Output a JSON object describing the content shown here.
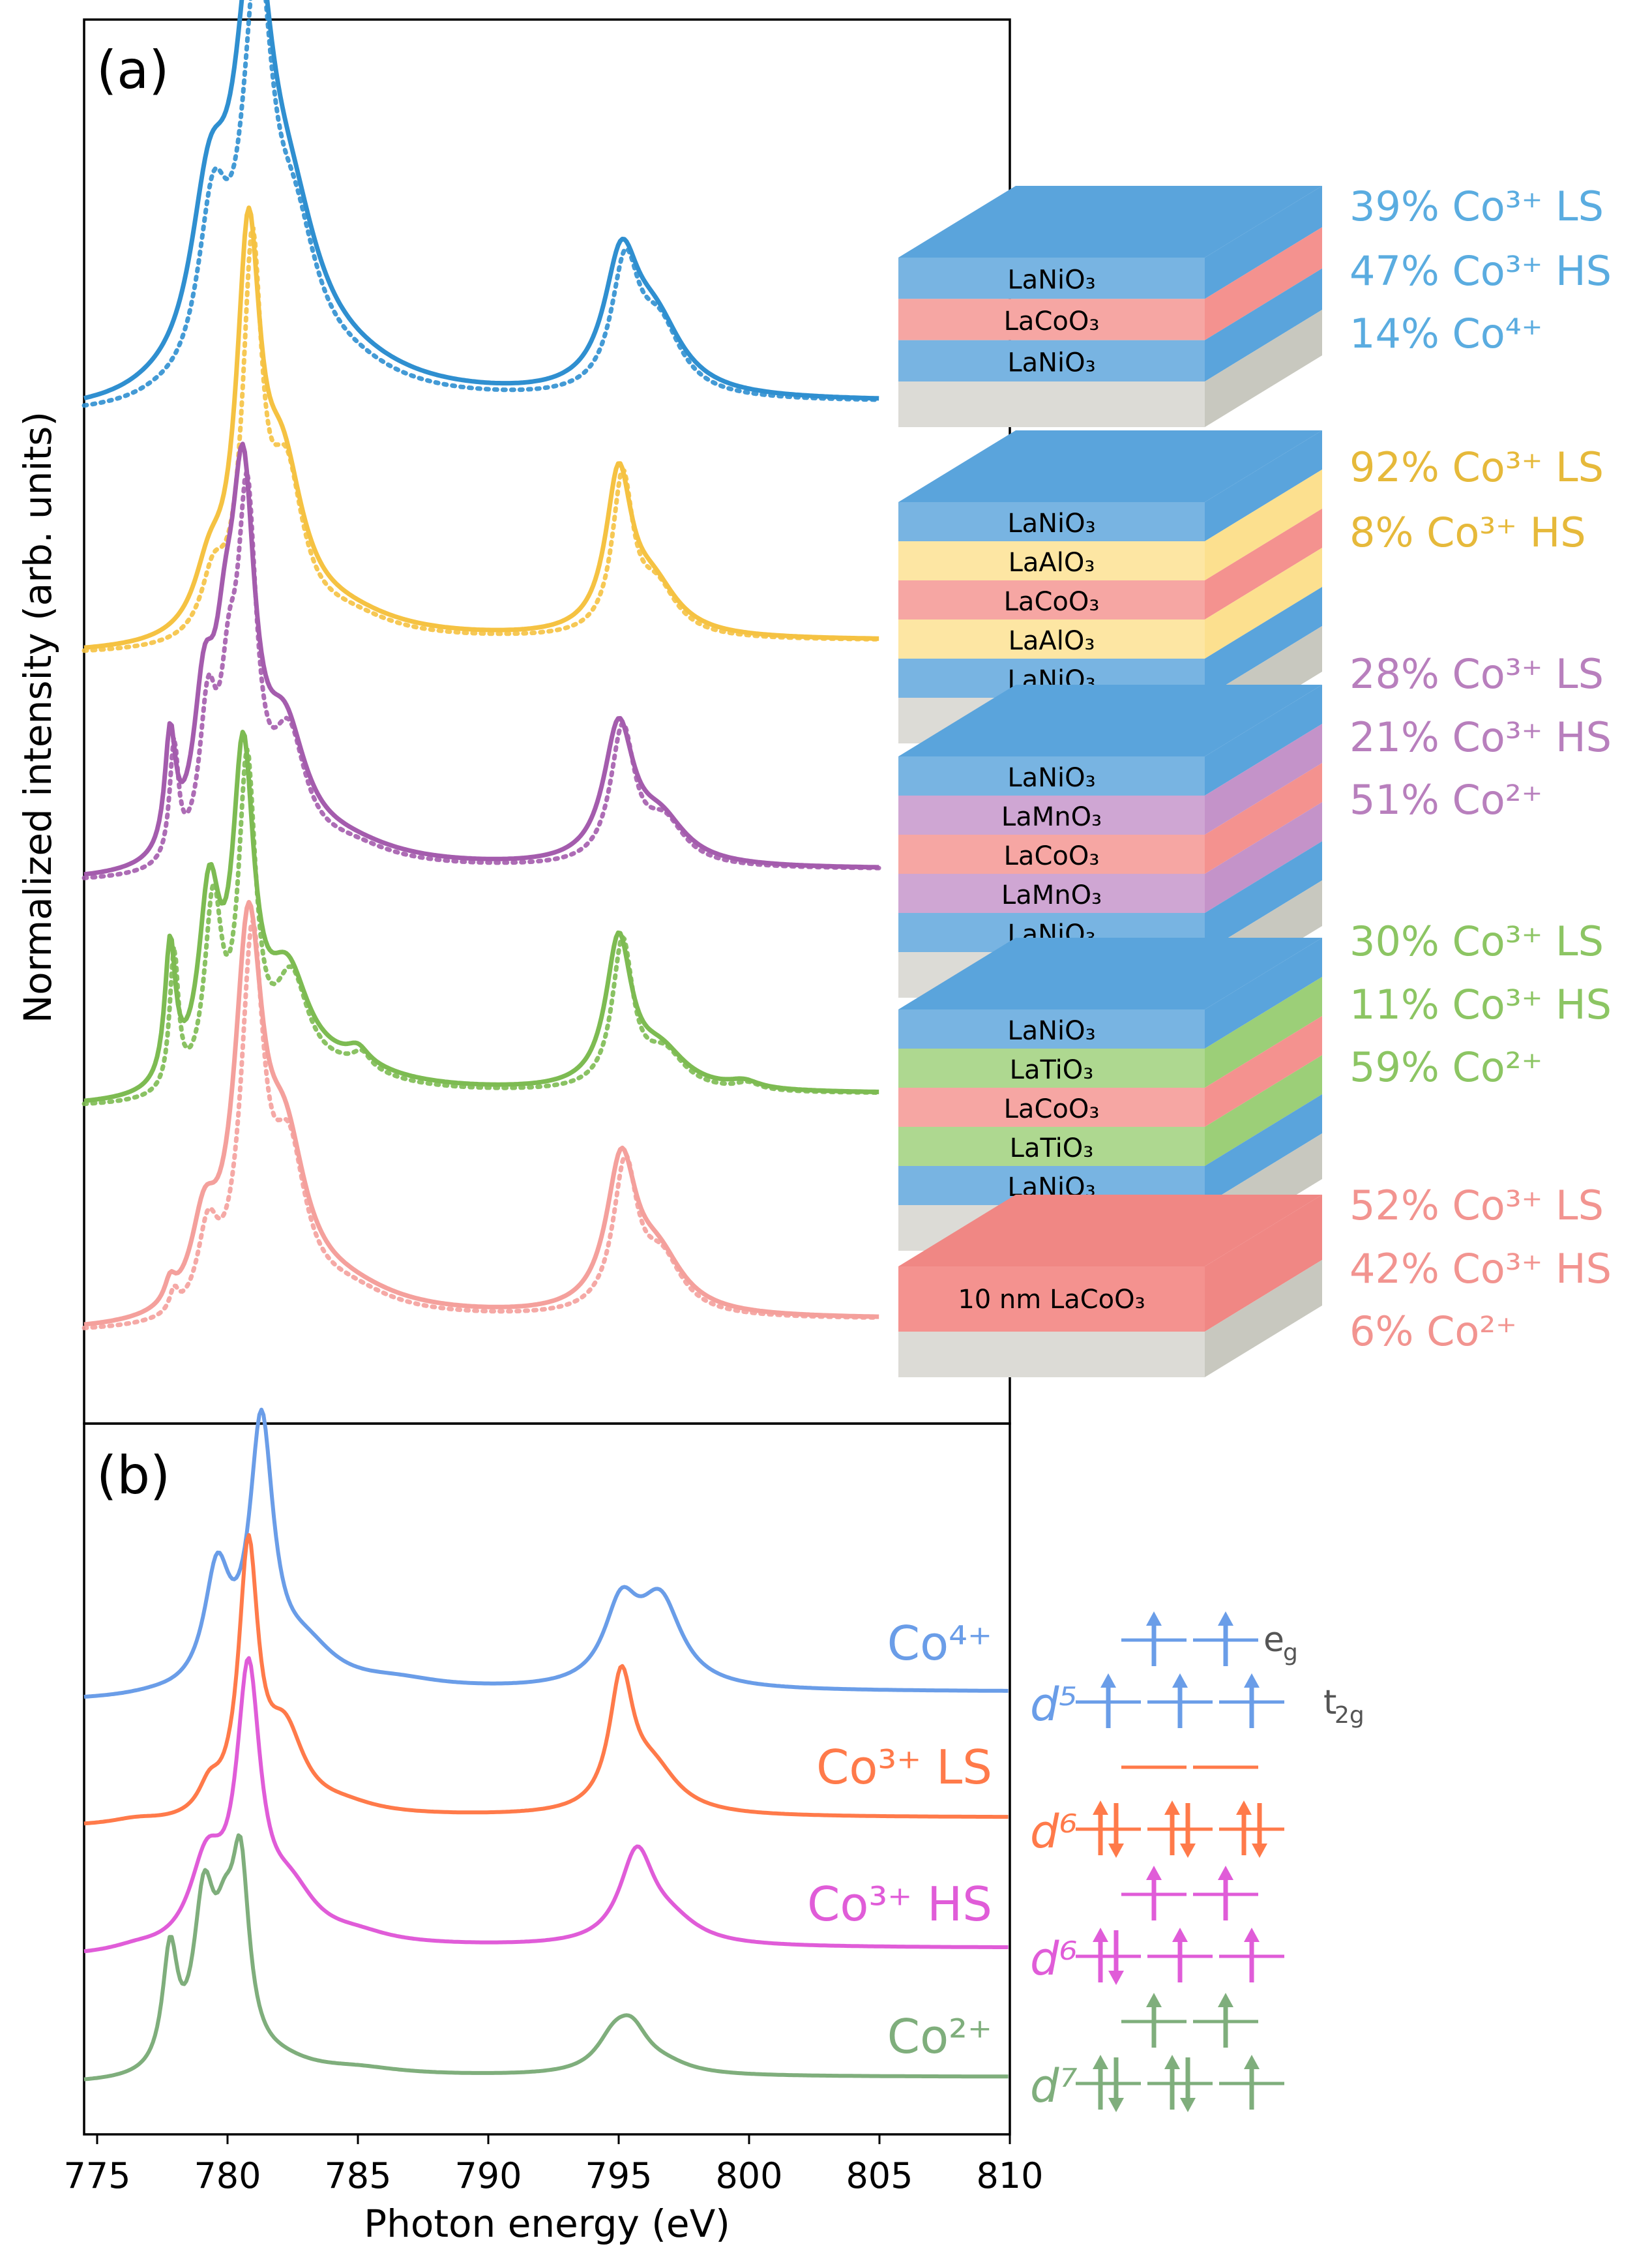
{
  "chart_data": [
    {
      "type": "line",
      "panel_label": "(a)",
      "ylabel": "Normalized intensity (arb. units)",
      "xlim": [
        774.5,
        810
      ],
      "legend_placement": "right",
      "note": "solid = measured, dotted = fit; each curve offset vertically",
      "series": [
        {
          "name": "LaNiO3/LaCoO3/LaNiO3",
          "color": "#2f8fd0",
          "baseline": 0.0,
          "peaks": [
            [
              777.2,
              0.01,
              1.5
            ],
            [
              779.3,
              0.45,
              0.9
            ],
            [
              781.0,
              1.0,
              0.85
            ],
            [
              782.4,
              0.35,
              1.4
            ],
            [
              784.5,
              0.06,
              3.0
            ],
            [
              795.1,
              0.33,
              0.8
            ],
            [
              796.4,
              0.18,
              1.3
            ]
          ],
          "layers": [
            "LaNiO₃",
            "LaCoO₃",
            "LaNiO₃"
          ],
          "layer_colors": [
            "#5aa4dc",
            "#f4928f",
            "#5aa4dc"
          ],
          "fractions": [
            "39% Co³⁺ LS",
            "47% Co³⁺ HS",
            "14% Co⁴⁺"
          ]
        },
        {
          "name": "LaNiO3/LaAlO3/LaCoO3/LaAlO3/LaNiO3",
          "color": "#f5c242",
          "baseline": 0.0,
          "peaks": [
            [
              779.3,
              0.15,
              0.7
            ],
            [
              780.8,
              1.0,
              0.55
            ],
            [
              782.1,
              0.4,
              1.0
            ],
            [
              784.5,
              0.05,
              2.5
            ],
            [
              795.0,
              0.42,
              0.6
            ],
            [
              796.3,
              0.13,
              1.2
            ]
          ],
          "layers": [
            "LaNiO₃",
            "LaAlO₃",
            "LaCoO₃",
            "LaAlO₃",
            "LaNiO₃"
          ],
          "layer_colors": [
            "#5aa4dc",
            "#fce08f",
            "#f4928f",
            "#fce08f",
            "#5aa4dc"
          ],
          "fractions": [
            "92% Co³⁺ LS",
            "8% Co³⁺ HS"
          ]
        },
        {
          "name": "LaNiO3/LaMnO3/LaCoO3/LaMnO3/LaNiO3",
          "color": "#a45cad",
          "baseline": 0.0,
          "peaks": [
            [
              777.8,
              0.33,
              0.25
            ],
            [
              779.1,
              0.4,
              0.5
            ],
            [
              779.9,
              0.35,
              0.5
            ],
            [
              780.6,
              0.95,
              0.55
            ],
            [
              782.2,
              0.32,
              1.0
            ],
            [
              784.5,
              0.05,
              2.5
            ],
            [
              795.0,
              0.38,
              0.7
            ],
            [
              796.6,
              0.12,
              1.2
            ]
          ],
          "layers": [
            "LaNiO₃",
            "LaMnO₃",
            "LaCoO₃",
            "LaMnO₃",
            "LaNiO₃"
          ],
          "layer_colors": [
            "#5aa4dc",
            "#c493c9",
            "#f4928f",
            "#c493c9",
            "#5aa4dc"
          ],
          "fractions": [
            "28% Co³⁺ LS",
            "21% Co³⁺ HS",
            "51% Co²⁺"
          ]
        },
        {
          "name": "LaNiO3/LaTiO3/LaCoO3/LaTiO3/LaNiO3",
          "color": "#7dbb52",
          "baseline": 0.0,
          "peaks": [
            [
              777.8,
              0.38,
              0.25
            ],
            [
              779.3,
              0.5,
              0.5
            ],
            [
              780.6,
              0.85,
              0.5
            ],
            [
              782.3,
              0.27,
              1.0
            ],
            [
              785.0,
              0.04,
              0.5
            ],
            [
              784.5,
              0.05,
              2.5
            ],
            [
              795.0,
              0.4,
              0.6
            ],
            [
              796.6,
              0.1,
              1.2
            ],
            [
              799.8,
              0.02,
              0.7
            ]
          ],
          "layers": [
            "LaNiO₃",
            "LaTiO₃",
            "LaCoO₃",
            "LaTiO₃",
            "LaNiO₃"
          ],
          "layer_colors": [
            "#5aa4dc",
            "#9ccf78",
            "#f4928f",
            "#9ccf78",
            "#5aa4dc"
          ],
          "fractions": [
            "30% Co³⁺ LS",
            "11% Co³⁺ HS",
            "59% Co²⁺"
          ]
        },
        {
          "name": "10 nm LaCoO3",
          "color": "#f4a09c",
          "baseline": 0.0,
          "peaks": [
            [
              777.8,
              0.06,
              0.25
            ],
            [
              779.1,
              0.22,
              0.6
            ],
            [
              780.8,
              1.0,
              0.65
            ],
            [
              782.2,
              0.4,
              1.0
            ],
            [
              784.5,
              0.06,
              2.5
            ],
            [
              795.1,
              0.41,
              0.7
            ],
            [
              796.5,
              0.15,
              1.2
            ]
          ],
          "layers": [
            "10 nm LaCoO₃"
          ],
          "layer_colors": [
            "#f4928f"
          ],
          "fractions": [
            "52% Co³⁺ LS",
            "42% Co³⁺ HS",
            "6% Co²⁺"
          ]
        }
      ]
    },
    {
      "type": "line",
      "panel_label": "(b)",
      "xlabel": "Photon energy (eV)",
      "xlim": [
        774.5,
        810
      ],
      "xticks": [
        775,
        780,
        785,
        790,
        795,
        800,
        805,
        810
      ],
      "series": [
        {
          "name": "Co⁴⁺",
          "color": "#6a9de8",
          "config": "d⁵",
          "peaks": [
            [
              777.2,
              0.01,
              1.5
            ],
            [
              779.6,
              0.45,
              0.6
            ],
            [
              781.3,
              1.0,
              0.55
            ],
            [
              783.0,
              0.14,
              1.4
            ],
            [
              786.5,
              0.03,
              2.0
            ],
            [
              795.1,
              0.3,
              0.8
            ],
            [
              796.6,
              0.33,
              1.0
            ]
          ],
          "t2g_arrows": [
            "up",
            "up",
            "up"
          ],
          "eg_arrows": [
            "up",
            "up"
          ]
        },
        {
          "name": "Co³⁺ LS",
          "color": "#ff7a4a",
          "config": "d⁶",
          "peaks": [
            [
              776.5,
              0.02,
              1.2
            ],
            [
              779.3,
              0.1,
              0.5
            ],
            [
              780.8,
              1.0,
              0.45
            ],
            [
              782.2,
              0.3,
              0.9
            ],
            [
              784.5,
              0.03,
              1.5
            ],
            [
              795.1,
              0.5,
              0.55
            ],
            [
              796.3,
              0.17,
              1.2
            ]
          ],
          "t2g_arrows": [
            "pair",
            "pair",
            "pair"
          ],
          "eg_arrows": [
            "empty",
            "empty"
          ]
        },
        {
          "name": "Co³⁺ HS",
          "color": "#e05cd8",
          "config": "d⁶",
          "peaks": [
            [
              776.5,
              0.02,
              1.2
            ],
            [
              779.2,
              0.32,
              0.8
            ],
            [
              780.8,
              1.0,
              0.55
            ],
            [
              782.4,
              0.18,
              1.2
            ],
            [
              785.0,
              0.03,
              1.5
            ],
            [
              795.7,
              0.35,
              0.8
            ],
            [
              797.0,
              0.08,
              1.3
            ]
          ],
          "t2g_arrows": [
            "pair",
            "up",
            "up"
          ],
          "eg_arrows": [
            "up",
            "up"
          ]
        },
        {
          "name": "Co²⁺",
          "color": "#7fae7c",
          "config": "d⁷",
          "peaks": [
            [
              777.8,
              0.6,
              0.35
            ],
            [
              779.1,
              0.82,
              0.5
            ],
            [
              779.9,
              0.5,
              0.5
            ],
            [
              780.5,
              0.9,
              0.4
            ],
            [
              782.0,
              0.05,
              1.5
            ],
            [
              785.0,
              0.03,
              2.0
            ],
            [
              794.8,
              0.15,
              0.8
            ],
            [
              795.5,
              0.2,
              0.8
            ],
            [
              796.8,
              0.04,
              1.2
            ]
          ],
          "t2g_arrows": [
            "pair",
            "pair",
            "up"
          ],
          "eg_arrows": [
            "up",
            "up"
          ]
        }
      ],
      "eg_label": "e",
      "eg_sub": "g",
      "t2g_label": "t",
      "t2g_sub": "2g"
    }
  ]
}
